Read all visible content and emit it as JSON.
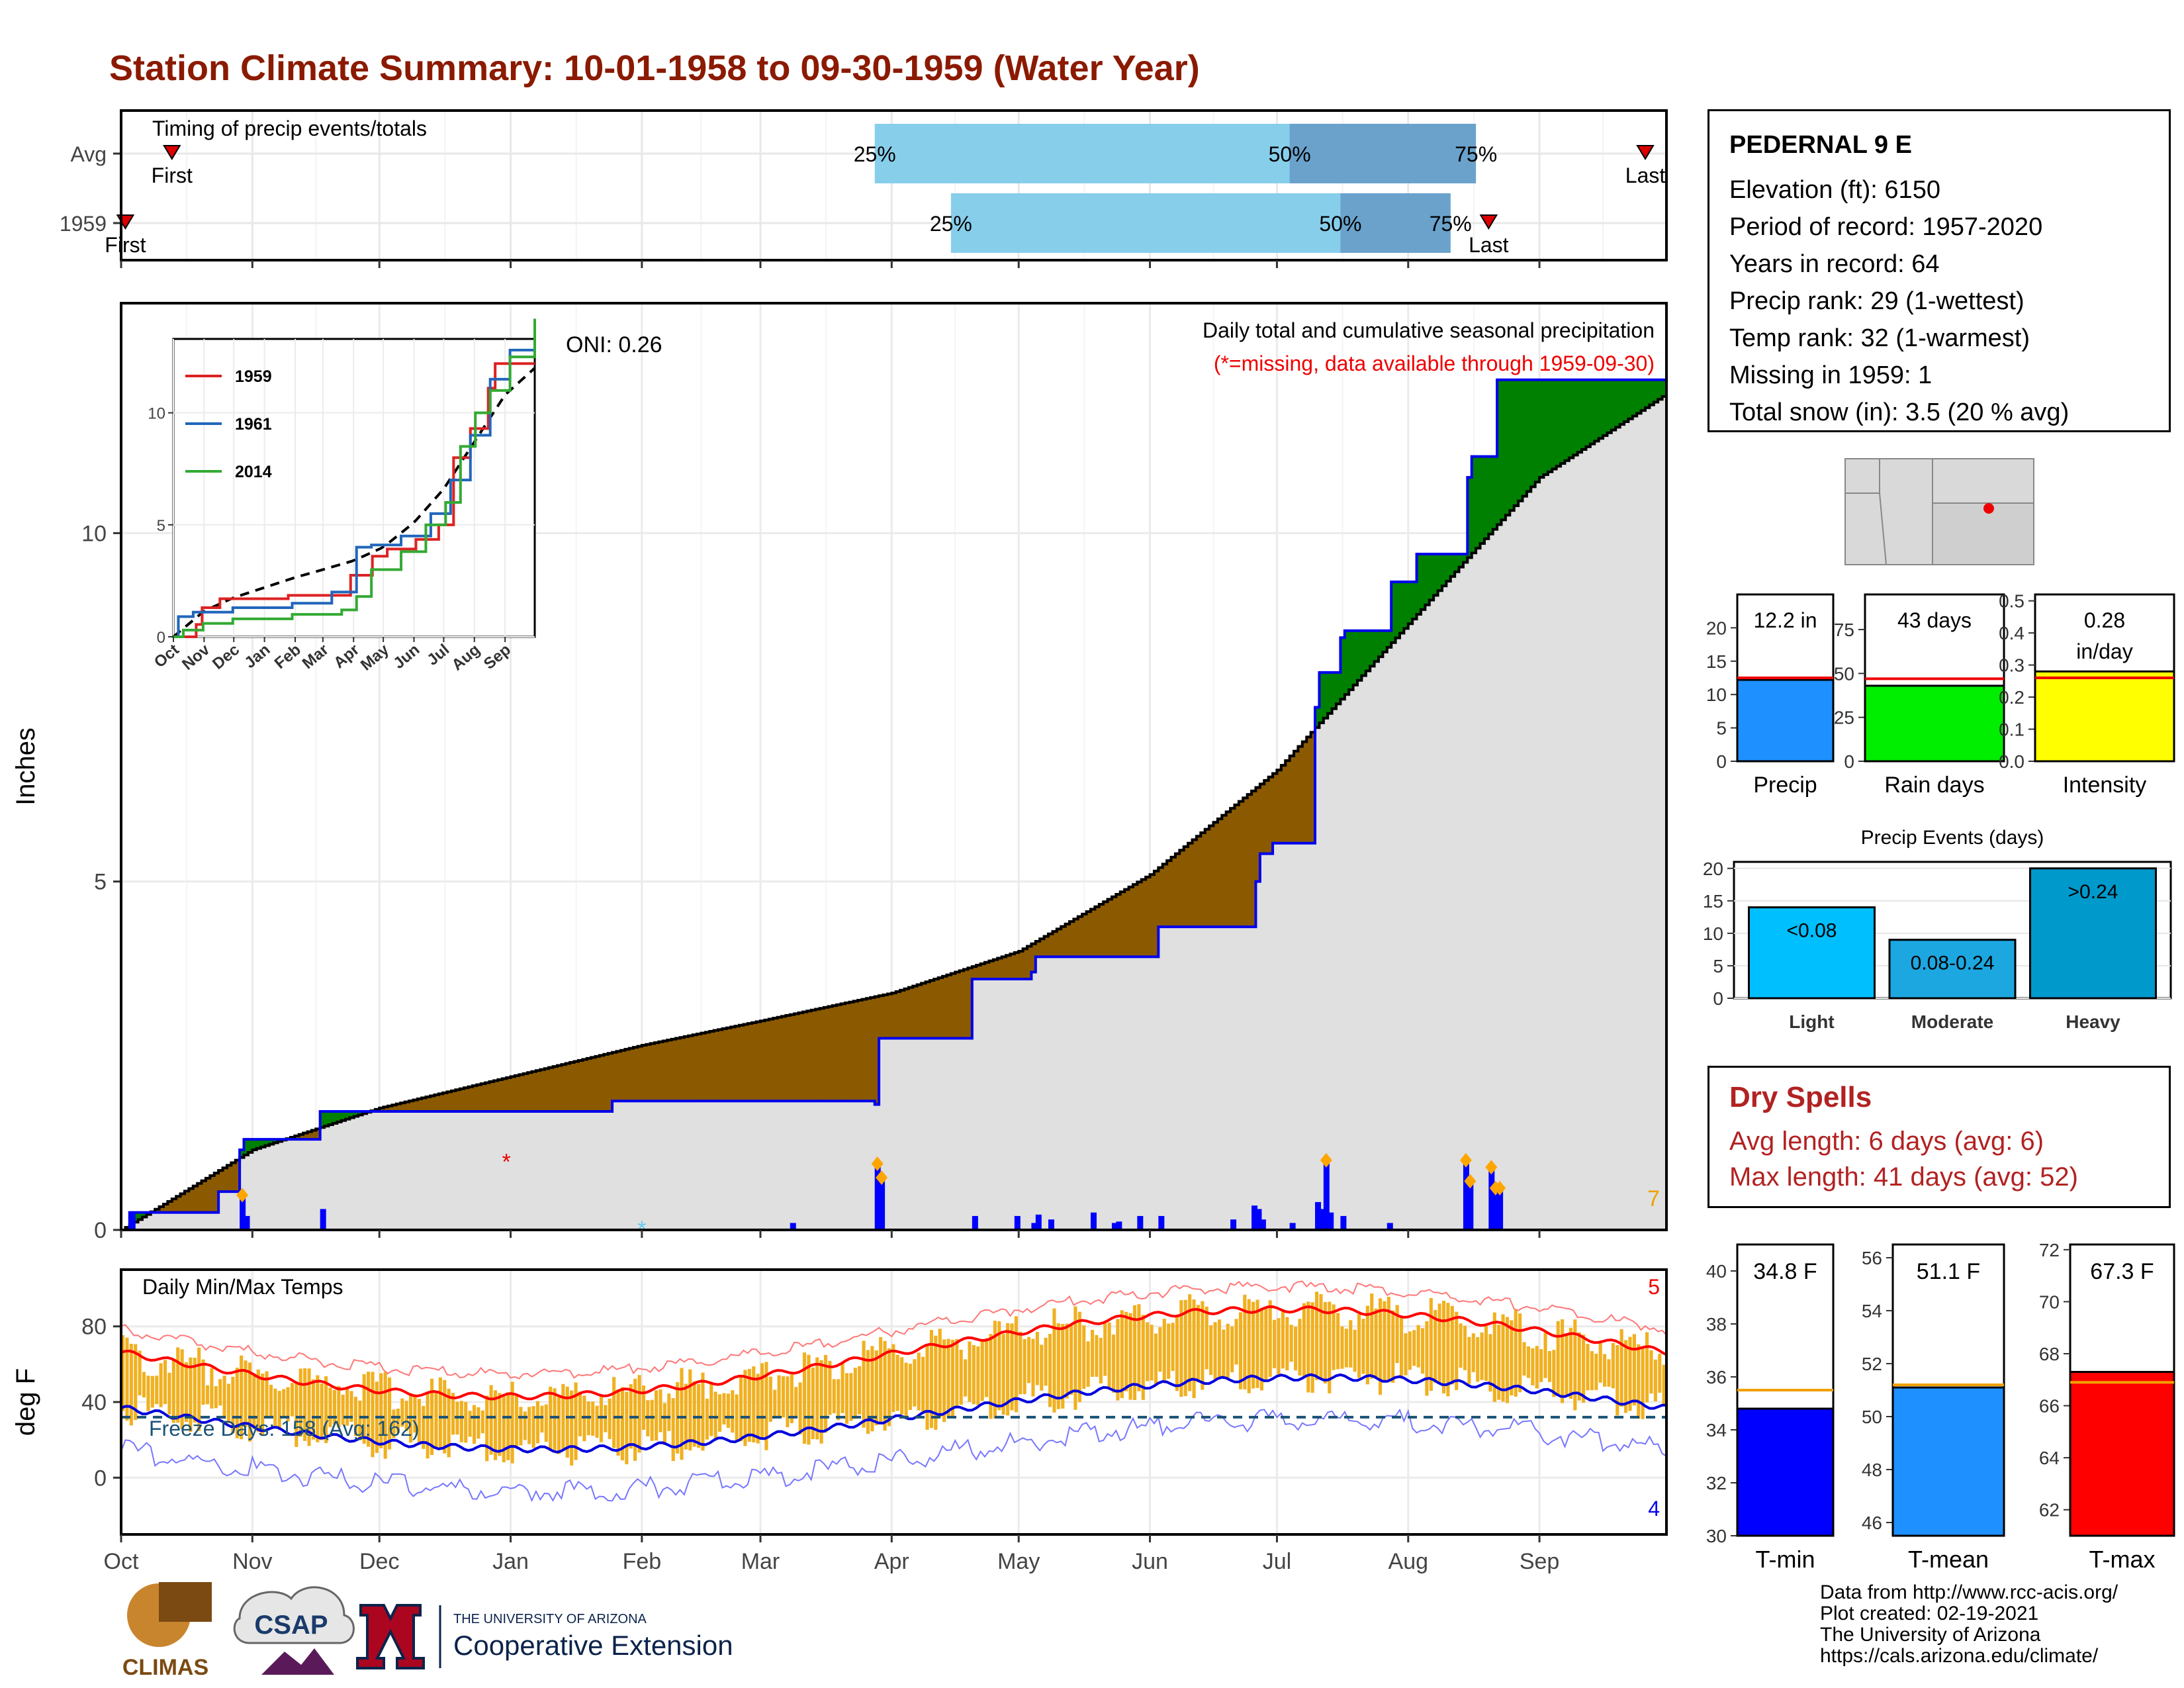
{
  "title": "Station Climate Summary: 10-01-1958 to 09-30-1959 (Water Year)",
  "station": {
    "name": "PEDERNAL 9 E",
    "lines": [
      "Elevation (ft): 6150",
      "Period of record: 1957-2020",
      "Years in record: 64",
      "Precip rank: 29 (1-wettest)",
      "Temp rank: 32 (1-warmest)",
      "Missing in 1959: 1",
      "Total snow (in): 3.5 (20 % avg)"
    ]
  },
  "timing": {
    "panel_title": "Timing of precip events/totals",
    "rows": [
      {
        "label": "Avg",
        "first": "First",
        "last": "Last",
        "p25": "25%",
        "p50": "50%",
        "p75": "75%",
        "first_day": 12,
        "last_day": 360,
        "p25_day": 178,
        "p50_day": 276,
        "p75_day": 320
      },
      {
        "label": "1959",
        "first": "First",
        "last": "Last",
        "p25": "25%",
        "p50": "50%",
        "p75": "75%",
        "first_day": 1,
        "last_day": 323,
        "p25_day": 196,
        "p50_day": 288,
        "p75_day": 314
      }
    ],
    "colors": {
      "light": "#87ceeb",
      "dark": "#6aa2cc",
      "marker": "#dd0000"
    }
  },
  "months": [
    "Oct",
    "Nov",
    "Dec",
    "Jan",
    "Feb",
    "Mar",
    "Apr",
    "May",
    "Jun",
    "Jul",
    "Aug",
    "Sep"
  ],
  "month_days": [
    0,
    31,
    61,
    92,
    123,
    151,
    182,
    212,
    243,
    273,
    304,
    335,
    365
  ],
  "precip": {
    "ylabel": "Inches",
    "title": "Daily total and cumulative seasonal precipitation",
    "subtitle": "(*=missing, data available through 1959-09-30)",
    "oni": "ONI: 0.26",
    "corner": "7",
    "yticks": [
      0,
      5,
      10
    ],
    "ylim": [
      0,
      13.3
    ],
    "avg_cum_days": [
      0,
      31,
      61,
      92,
      123,
      151,
      182,
      212,
      243,
      273,
      304,
      335,
      365
    ],
    "avg_cum_values": [
      0,
      1.15,
      1.75,
      2.2,
      2.65,
      3.0,
      3.4,
      4.0,
      5.1,
      6.6,
      8.7,
      10.8,
      12.0
    ],
    "cum_days": [
      0,
      2,
      23,
      28,
      29,
      47,
      70,
      116,
      151,
      178,
      179,
      201,
      215,
      216,
      245,
      268,
      269,
      272,
      282,
      283,
      288,
      289,
      300,
      306,
      318,
      319,
      325,
      329,
      365
    ],
    "cum_values": [
      0.0,
      0.25,
      0.55,
      1.15,
      1.3,
      1.7,
      1.7,
      1.85,
      1.85,
      1.8,
      2.75,
      3.6,
      3.7,
      3.92,
      4.35,
      5.0,
      5.4,
      5.55,
      7.5,
      8.0,
      8.5,
      8.6,
      9.3,
      9.7,
      10.8,
      11.1,
      12.2,
      12.2,
      12.2
    ],
    "daily_days": [
      2,
      28,
      29,
      47,
      158,
      178,
      179,
      201,
      211,
      215,
      216,
      219,
      229,
      234,
      235,
      240,
      245,
      262,
      267,
      268,
      269,
      276,
      282,
      283,
      284,
      285,
      288,
      299,
      317,
      318,
      323,
      324,
      325
    ],
    "daily_values": [
      0.25,
      0.5,
      0.2,
      0.3,
      0.1,
      0.95,
      0.75,
      0.2,
      0.2,
      0.1,
      0.22,
      0.15,
      0.25,
      0.1,
      0.12,
      0.2,
      0.2,
      0.15,
      0.35,
      0.3,
      0.15,
      0.1,
      0.4,
      0.3,
      1.0,
      0.25,
      0.2,
      0.1,
      1.0,
      0.7,
      0.9,
      0.6,
      0.6
    ],
    "missing_day": 91,
    "snow_day": 123,
    "colors": {
      "above": "#008000",
      "below": "#8b5a00",
      "fill": "#e0e0e0",
      "daily": "#0000ff",
      "event": "#ffa500"
    }
  },
  "inset": {
    "yticks": [
      0,
      5,
      10
    ],
    "months": [
      "Oct",
      "Nov",
      "Dec",
      "Jan",
      "Feb",
      "Mar",
      "Apr",
      "May",
      "Jun",
      "Jul",
      "Aug",
      "Sep"
    ],
    "series": [
      {
        "name": "1959",
        "color": "#dd2222",
        "x": [
          0,
          23,
          29,
          47,
          70,
          116,
          151,
          179,
          201,
          216,
          245,
          268,
          283,
          300,
          318,
          325,
          365
        ],
        "y": [
          0,
          0.55,
          1.3,
          1.7,
          1.7,
          1.85,
          1.85,
          2.75,
          3.6,
          3.92,
          4.35,
          5.0,
          8.0,
          9.3,
          11.1,
          12.2,
          12.2
        ]
      },
      {
        "name": "1961",
        "color": "#2266bb",
        "x": [
          0,
          5,
          20,
          60,
          120,
          160,
          185,
          200,
          230,
          260,
          280,
          300,
          320,
          340,
          365
        ],
        "y": [
          0,
          0.9,
          1.1,
          1.3,
          1.5,
          2.0,
          4.0,
          4.1,
          4.5,
          5.5,
          7.0,
          9.0,
          11.5,
          12.8,
          13.0
        ]
      },
      {
        "name": "2014",
        "color": "#33aa33",
        "x": [
          0,
          10,
          30,
          60,
          120,
          170,
          185,
          200,
          230,
          255,
          275,
          290,
          305,
          320,
          340,
          365
        ],
        "y": [
          0,
          0.3,
          0.6,
          0.8,
          1.0,
          1.2,
          1.8,
          3.0,
          3.8,
          5.0,
          6.0,
          8.5,
          10.0,
          11.0,
          12.5,
          14.2
        ]
      }
    ]
  },
  "temps": {
    "panel_title": "Daily Min/Max Temps",
    "ylabel": "deg F",
    "freeze": "Freeze Days: 158 (Avg: 162)",
    "corner_max": "5",
    "corner_min": "4",
    "yticks": [
      0,
      40,
      80
    ],
    "ylim": [
      -30,
      110
    ],
    "freeze_line": 32,
    "colors": {
      "range": "#f0b020",
      "avgmax": "#ff0000",
      "avgmin": "#0000dd",
      "recmax": "#ff7777",
      "recmin": "#7777ff",
      "freeze": "#1a5276"
    }
  },
  "bars": {
    "precip": {
      "label": "Precip",
      "value_text": "12.2 in",
      "value": 12.2,
      "avg": 12.5,
      "ymax": 25,
      "ticks": [
        0,
        5,
        10,
        15,
        20
      ],
      "color": "#1e90ff"
    },
    "raindays": {
      "label": "Rain days",
      "value_text": "43 days",
      "value": 43,
      "avg": 47,
      "ymax": 95,
      "ticks": [
        0,
        25,
        50,
        75
      ],
      "color": "#00ee00"
    },
    "intensity": {
      "label": "Intensity",
      "value_text": "0.28",
      "unit_text": "in/day",
      "value": 0.28,
      "avg": 0.26,
      "ymax": 0.52,
      "ticks": [
        0.0,
        0.1,
        0.2,
        0.3,
        0.4,
        0.5
      ],
      "color": "#ffff00"
    }
  },
  "events": {
    "title": "Precip Events (days)",
    "ticks": [
      0,
      5,
      10,
      15,
      20
    ],
    "ymax": 21,
    "items": [
      {
        "label": "Light",
        "value_text": "<0.08",
        "value": 14,
        "color": "#00bfff"
      },
      {
        "label": "Moderate",
        "value_text": "0.08-0.24",
        "value": 9,
        "color": "#1ca7e0"
      },
      {
        "label": "Heavy",
        "value_text": ">0.24",
        "value": 20,
        "color": "#0099cc"
      }
    ]
  },
  "dry_spells": {
    "title": "Dry Spells",
    "avg": "Avg length: 6 days (avg: 6)",
    "max": "Max length: 41 days (avg: 52)"
  },
  "temp_bars": [
    {
      "label": "T-min",
      "value_text": "34.8 F",
      "value": 34.8,
      "avg": 35.5,
      "ymin": 30,
      "ymax": 41,
      "ticks": [
        30,
        32,
        34,
        36,
        38,
        40
      ],
      "color": "#0000ff"
    },
    {
      "label": "T-mean",
      "value_text": "51.1 F",
      "value": 51.1,
      "avg": 51.2,
      "ymin": 45.5,
      "ymax": 56.5,
      "ticks": [
        46,
        48,
        50,
        52,
        54,
        56
      ],
      "color": "#1e90ff"
    },
    {
      "label": "T-max",
      "value_text": "67.3 F",
      "value": 67.3,
      "avg": 66.9,
      "ymin": 61,
      "ymax": 72.2,
      "ticks": [
        62,
        64,
        66,
        68,
        70,
        72
      ],
      "color": "#ff0000"
    }
  ],
  "credits": [
    "Data from http://www.rcc-acis.org/",
    "Plot created: 02-19-2021",
    "The University of Arizona",
    "https://cals.arizona.edu/climate/"
  ],
  "logos": {
    "climas": "CLIMAS",
    "csap": "CSAP",
    "ua_small": "THE UNIVERSITY OF ARIZONA",
    "ua_big": "Cooperative Extension"
  }
}
